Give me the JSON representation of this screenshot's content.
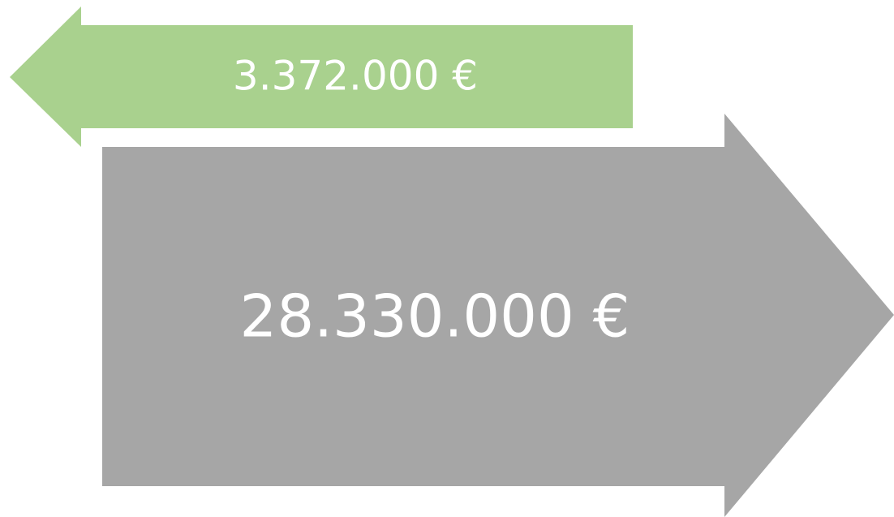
{
  "arrows": [
    {
      "label": "3.372.000 €"
    },
    {
      "label": "28.330.000 €"
    }
  ]
}
